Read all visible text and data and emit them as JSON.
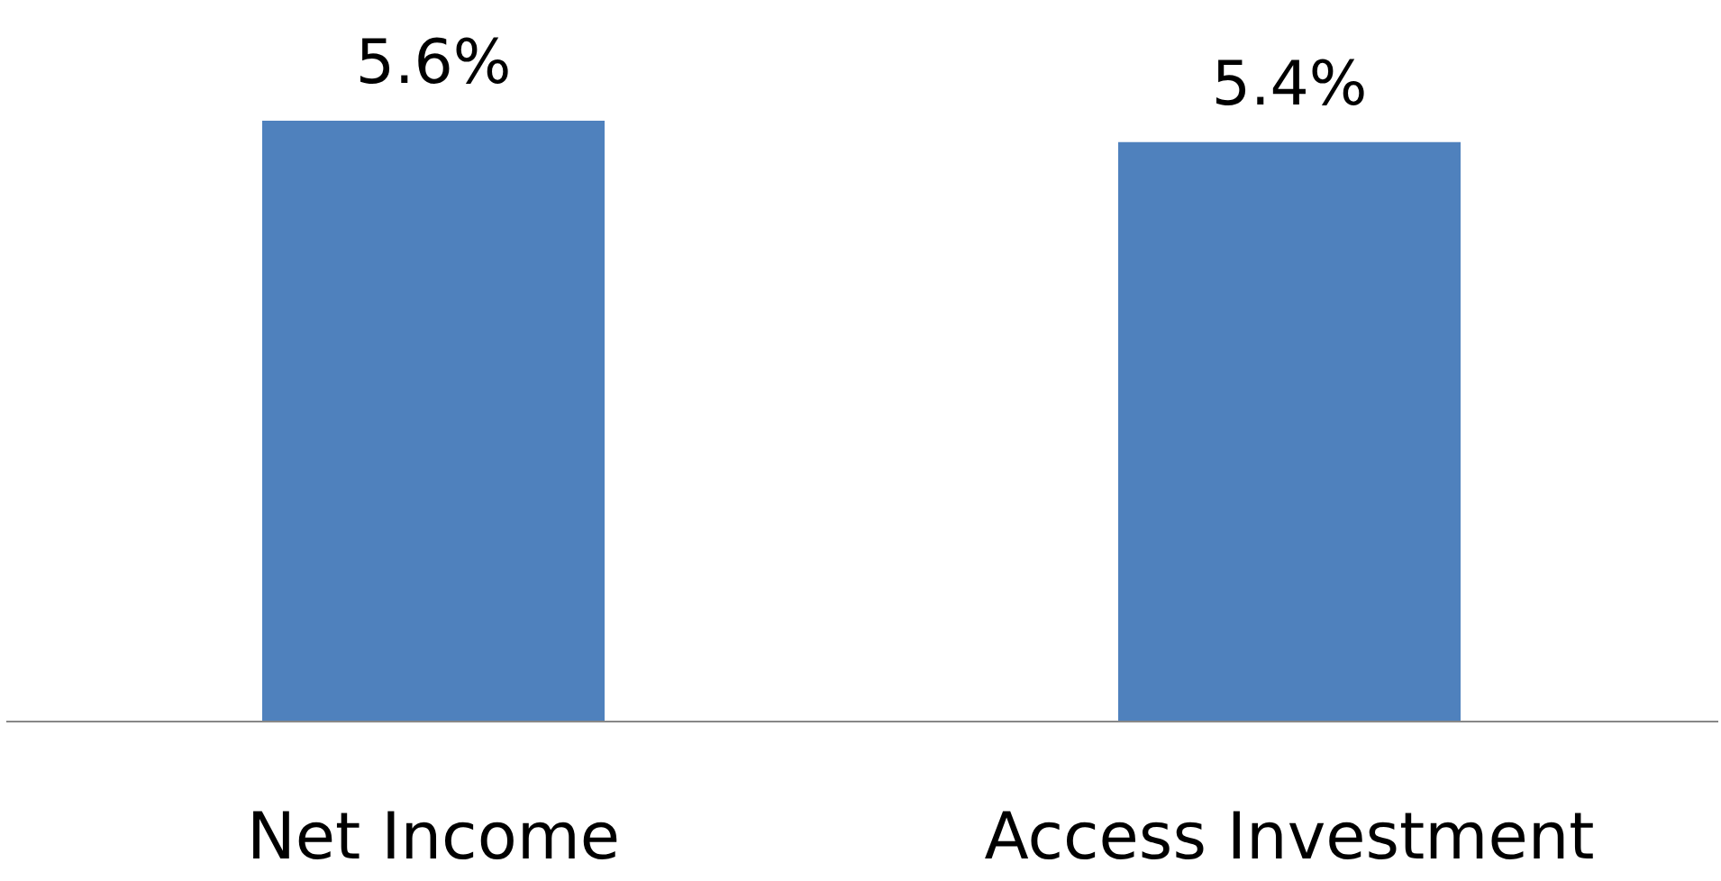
{
  "chart_data": {
    "type": "bar",
    "categories": [
      "Net Income",
      "Access Investment"
    ],
    "values": [
      5.6,
      5.4
    ],
    "value_labels": [
      "5.6%",
      "5.4%"
    ],
    "color": "#4f81bd"
  }
}
